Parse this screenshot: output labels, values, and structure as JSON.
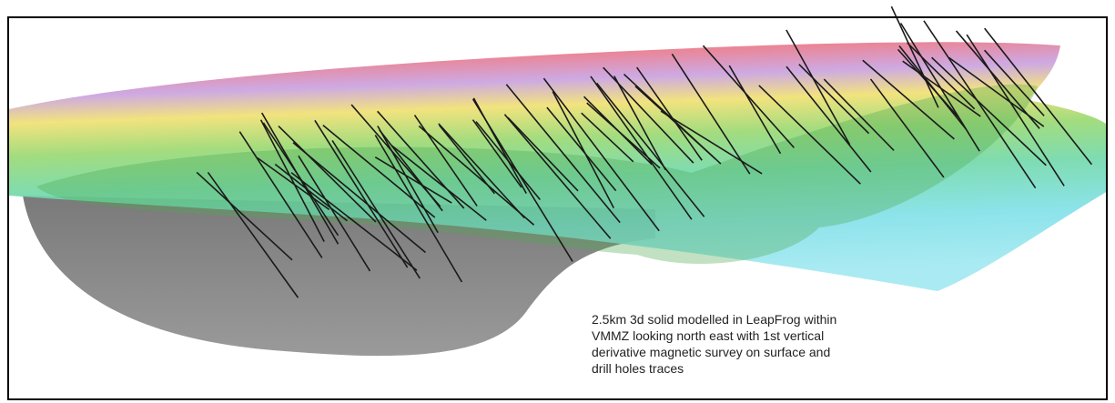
{
  "caption": {
    "lines": [
      "2.5km 3d solid modelled in LeapFrog within",
      "VMMZ looking north east with 1st vertical",
      "derivative magnetic survey on surface and",
      "drill holes traces"
    ]
  }
}
